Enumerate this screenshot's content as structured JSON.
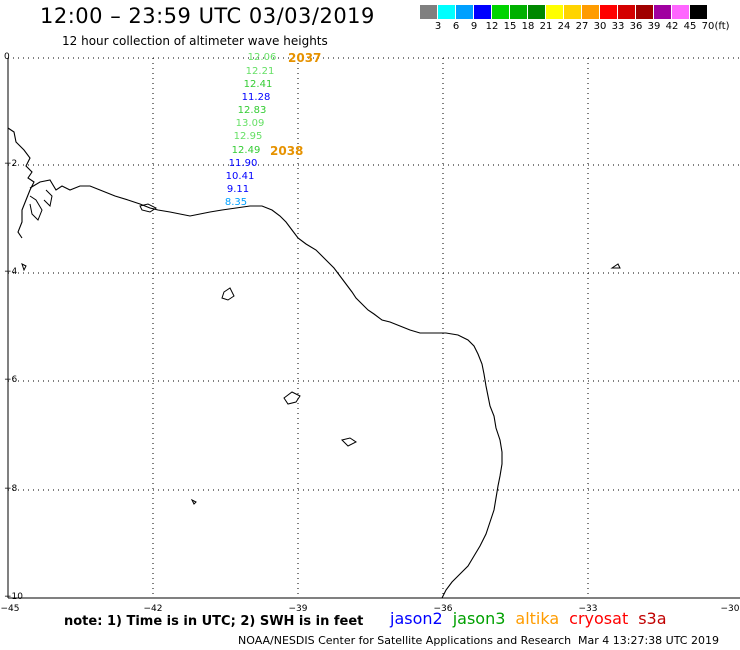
{
  "header": {
    "title": "12:00 – 23:59 UTC 03/03/2019",
    "subtitle": "12 hour collection of altimeter wave heights"
  },
  "color_scale": {
    "unit": "(ft)",
    "bins": [
      {
        "label": "3",
        "color": "#808080"
      },
      {
        "label": "6",
        "color": "#00ffff"
      },
      {
        "label": "9",
        "color": "#00a0ff"
      },
      {
        "label": "12",
        "color": "#0000ff"
      },
      {
        "label": "15",
        "color": "#00d400"
      },
      {
        "label": "18",
        "color": "#00b000"
      },
      {
        "label": "21",
        "color": "#008800"
      },
      {
        "label": "24",
        "color": "#ffff00"
      },
      {
        "label": "27",
        "color": "#ffd400"
      },
      {
        "label": "30",
        "color": "#ff9c00"
      },
      {
        "label": "33",
        "color": "#ff0000"
      },
      {
        "label": "36",
        "color": "#d40000"
      },
      {
        "label": "39",
        "color": "#a00000"
      },
      {
        "label": "42",
        "color": "#a000a0"
      },
      {
        "label": "45",
        "color": "#ff66ff"
      },
      {
        "label": "70",
        "color": "#000000"
      }
    ]
  },
  "map": {
    "y_axis_labels": [
      "0",
      "−2",
      "−4",
      "−6",
      "−8",
      "−10"
    ],
    "x_axis_labels": [
      "−45",
      "−42",
      "−39",
      "−36",
      "−33",
      "−30"
    ],
    "gridlines": true
  },
  "wave_heights": [
    {
      "value": "12.06",
      "color": "#66e066"
    },
    {
      "value": "12.21",
      "color": "#66e066"
    },
    {
      "value": "12.41",
      "color": "#33cc33"
    },
    {
      "value": "11.28",
      "color": "#0000ff"
    },
    {
      "value": "12.83",
      "color": "#33cc33"
    },
    {
      "value": "13.09",
      "color": "#66e066"
    },
    {
      "value": "12.95",
      "color": "#66e066"
    },
    {
      "value": "12.49",
      "color": "#33cc33"
    },
    {
      "value": "11.90",
      "color": "#0000ff"
    },
    {
      "value": "10.41",
      "color": "#0000ff"
    },
    {
      "value": "9.11",
      "color": "#0000ff"
    },
    {
      "value": "8.35",
      "color": "#00a0ff"
    }
  ],
  "pass_labels": [
    "2037",
    "2038"
  ],
  "note": "note:  1) Time is in UTC;  2) SWH is in feet",
  "satellite_legend": [
    {
      "name": "jason2",
      "color": "#0000ff"
    },
    {
      "name": "jason3",
      "color": "#00a000"
    },
    {
      "name": "altika",
      "color": "#ff9c00"
    },
    {
      "name": "cryosat",
      "color": "#ff0000"
    },
    {
      "name": "s3a",
      "color": "#c00000"
    }
  ],
  "footer": {
    "credit": "NOAA/NESDIS Center for Satellite Applications and Research",
    "timestamp": "Mar  4 13:27:38 UTC 2019"
  }
}
